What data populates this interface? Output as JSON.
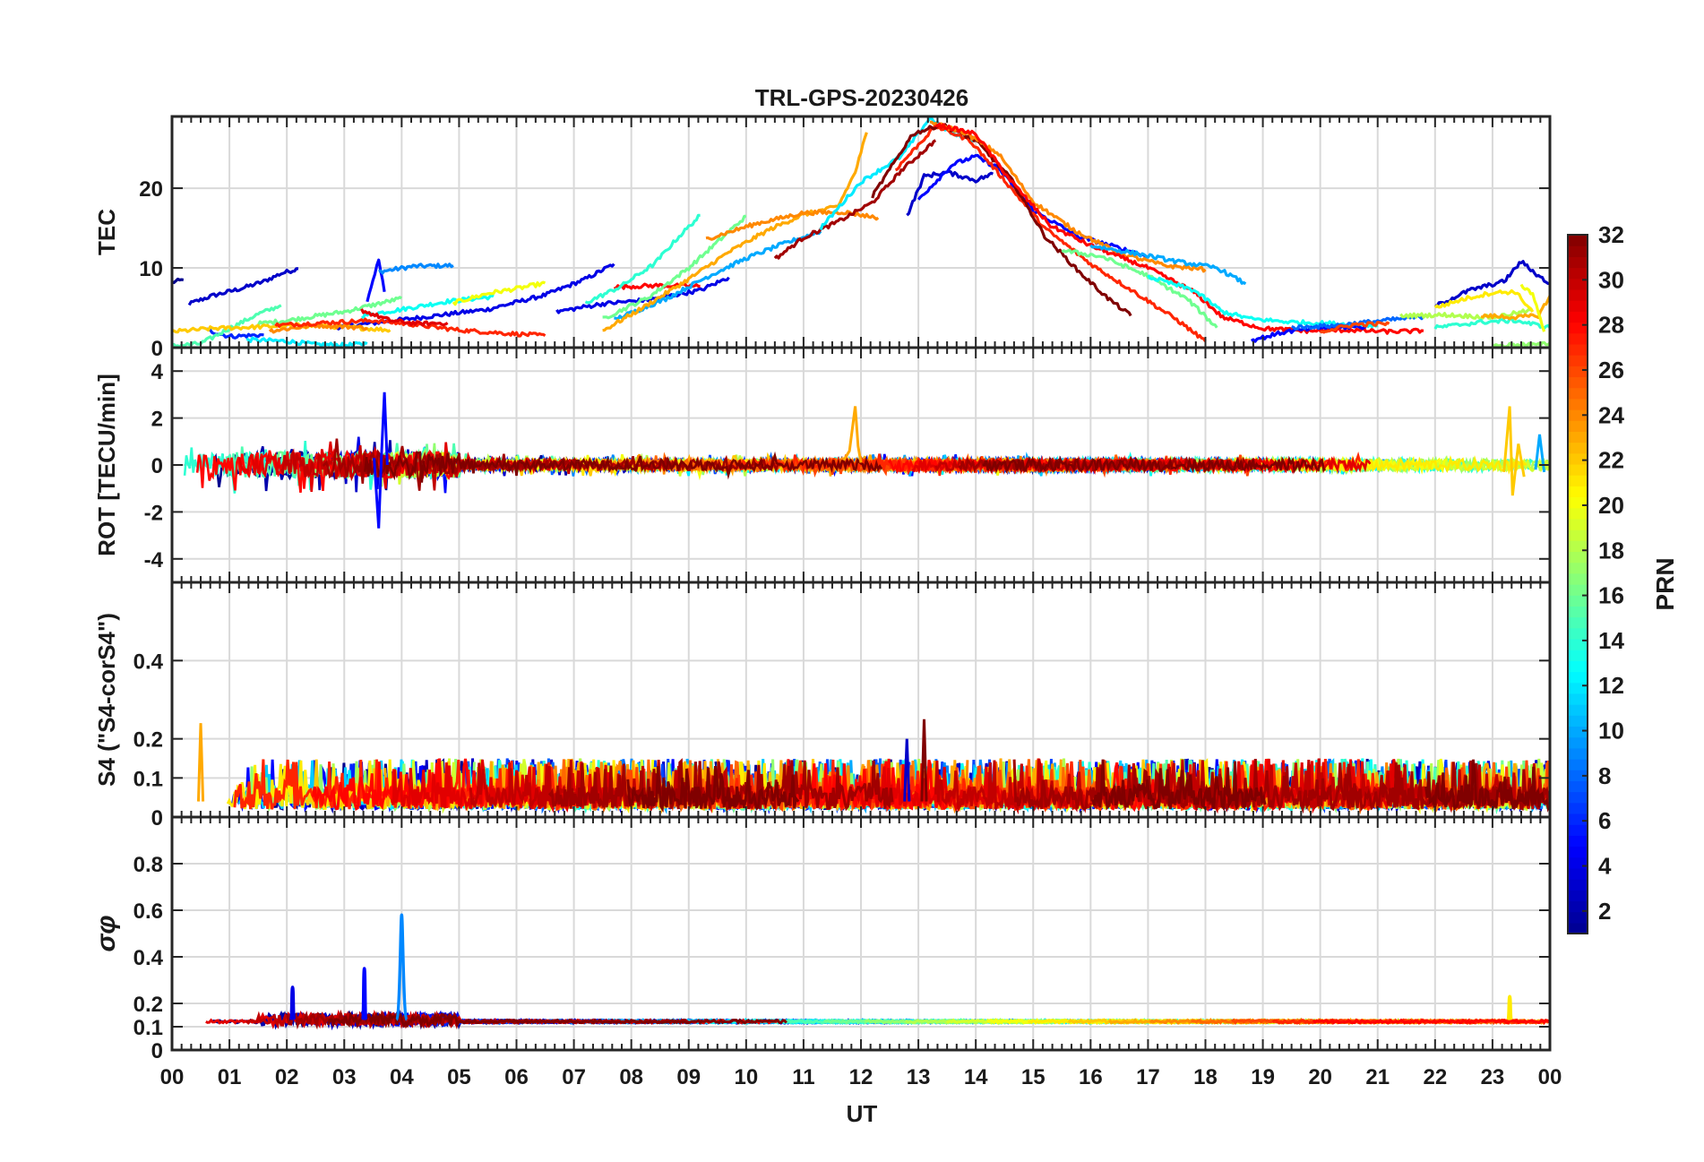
{
  "figure": {
    "title": "TRL-GPS-20230426",
    "xlabel": "UT"
  },
  "colorbar": {
    "label": "PRN",
    "range": [
      1,
      32
    ],
    "ticks": [
      2,
      4,
      6,
      8,
      10,
      12,
      14,
      16,
      18,
      20,
      22,
      24,
      26,
      28,
      30,
      32
    ],
    "colormap": "jet",
    "colors": [
      "#00008f",
      "#0000ff",
      "#0080ff",
      "#00ffff",
      "#80ff80",
      "#ffff00",
      "#ff8000",
      "#ff0000",
      "#800000"
    ]
  },
  "x_axis": {
    "range_hours": [
      0,
      24
    ],
    "tick_labels": [
      "00",
      "01",
      "02",
      "03",
      "04",
      "05",
      "06",
      "07",
      "08",
      "09",
      "10",
      "11",
      "12",
      "13",
      "14",
      "15",
      "16",
      "17",
      "18",
      "19",
      "20",
      "21",
      "22",
      "23",
      "00"
    ]
  },
  "chart_data": [
    {
      "type": "line",
      "panel": "tec",
      "ylabel": "TEC",
      "ylim": [
        0,
        29
      ],
      "yticks": [
        0,
        10,
        20
      ],
      "grid": true,
      "series": [
        {
          "prn": 1,
          "x": [
            0.0,
            0.2
          ],
          "y": [
            8.2,
            8.5
          ]
        },
        {
          "prn": 3,
          "x": [
            0.3,
            0.7,
            1.2,
            1.6,
            1.9,
            2.2
          ],
          "y": [
            5.5,
            6.5,
            7.4,
            8.3,
            9.3,
            9.9
          ]
        },
        {
          "prn": 5,
          "x": [
            3.4,
            3.6,
            3.7
          ],
          "y": [
            6.0,
            11.0,
            7.0
          ]
        },
        {
          "prn": 9,
          "x": [
            3.6,
            4.2,
            4.9
          ],
          "y": [
            9.5,
            10.2,
            10.3
          ]
        },
        {
          "prn": 4,
          "x": [
            2.8,
            4.0,
            5.5,
            6.5,
            7.2,
            7.7
          ],
          "y": [
            2.5,
            3.5,
            4.8,
            6.6,
            8.6,
            10.5
          ]
        },
        {
          "prn": 6,
          "x": [
            0.6,
            1.0,
            1.6
          ],
          "y": [
            2.2,
            1.4,
            1.6
          ]
        },
        {
          "prn": 12,
          "x": [
            1.3,
            2.0,
            2.5,
            3.0,
            3.4
          ],
          "y": [
            1.0,
            0.8,
            0.4,
            0.3,
            0.5
          ]
        },
        {
          "prn": 13,
          "x": [
            3.3,
            4.0,
            4.8,
            5.6
          ],
          "y": [
            4.0,
            4.8,
            5.8,
            6.4
          ]
        },
        {
          "prn": 15,
          "x": [
            0.0,
            0.5,
            1.0,
            1.5,
            1.9
          ],
          "y": [
            0.2,
            0.5,
            2.4,
            4.2,
            5.3
          ]
        },
        {
          "prn": 16,
          "x": [
            1.5,
            2.0,
            3.0,
            4.0
          ],
          "y": [
            3.0,
            3.4,
            4.5,
            6.2
          ]
        },
        {
          "prn": 20,
          "x": [
            4.9,
            5.5,
            6.0,
            6.5
          ],
          "y": [
            5.6,
            6.8,
            7.4,
            8.1
          ]
        },
        {
          "prn": 22,
          "x": [
            0.0,
            0.7,
            1.5,
            2.2,
            3.0,
            3.8
          ],
          "y": [
            2.0,
            2.4,
            2.6,
            2.8,
            2.6,
            2.2
          ]
        },
        {
          "prn": 24,
          "x": [
            1.7,
            2.5,
            3.4
          ],
          "y": [
            2.1,
            2.8,
            2.5
          ]
        },
        {
          "prn": 27,
          "x": [
            1.8,
            2.6,
            3.5,
            4.2,
            5.0,
            5.8,
            6.5
          ],
          "y": [
            2.8,
            3.1,
            3.4,
            2.9,
            2.2,
            1.8,
            1.5
          ]
        },
        {
          "prn": 29,
          "x": [
            3.3,
            3.8,
            4.3,
            4.8
          ],
          "y": [
            4.7,
            3.4,
            3.0,
            3.1
          ]
        },
        {
          "prn": 4,
          "x": [
            6.7,
            7.5,
            8.3,
            9.2,
            9.7
          ],
          "y": [
            4.5,
            5.5,
            6.0,
            7.2,
            8.8
          ]
        },
        {
          "prn": 28,
          "x": [
            7.7,
            8.5,
            9.2
          ],
          "y": [
            7.6,
            7.8,
            7.7
          ]
        },
        {
          "prn": 14,
          "x": [
            7.2,
            7.8,
            8.4,
            8.8,
            9.2
          ],
          "y": [
            5.6,
            7.6,
            10.5,
            13.7,
            16.6
          ]
        },
        {
          "prn": 16,
          "x": [
            7.5,
            8.3,
            9.0,
            9.6,
            10.0
          ],
          "y": [
            3.6,
            6.3,
            10.0,
            13.9,
            16.5
          ]
        },
        {
          "prn": 10,
          "x": [
            7.7,
            8.6,
            9.3,
            10.0,
            10.6,
            11.3
          ],
          "y": [
            3.5,
            6.1,
            8.8,
            11.2,
            12.9,
            14.6
          ]
        },
        {
          "prn": 23,
          "x": [
            7.5,
            8.2,
            9.0,
            9.7,
            10.4,
            11.0,
            11.6,
            11.9,
            12.1
          ],
          "y": [
            2.1,
            5.0,
            8.6,
            12.0,
            14.8,
            16.7,
            17.7,
            22.0,
            27.0
          ]
        },
        {
          "prn": 24,
          "x": [
            9.3,
            10.2,
            11.0,
            11.7,
            12.3
          ],
          "y": [
            13.6,
            15.6,
            16.9,
            17.0,
            16.3
          ]
        },
        {
          "prn": 31,
          "x": [
            10.5,
            11.0,
            11.6,
            12.2,
            12.7,
            13.3
          ],
          "y": [
            11.1,
            13.8,
            15.8,
            18.2,
            22.2,
            26.0
          ]
        },
        {
          "prn": 12,
          "x": [
            11.3,
            12.0,
            12.7,
            13.2,
            13.6,
            14.0
          ],
          "y": [
            15.0,
            20.8,
            24.0,
            28.8,
            26.8,
            26.0
          ]
        },
        {
          "prn": 3,
          "x": [
            12.8,
            13.1,
            13.5,
            14.0,
            14.3
          ],
          "y": [
            16.5,
            21.5,
            22.0,
            21.0,
            21.8
          ]
        },
        {
          "prn": 5,
          "x": [
            13.0,
            13.6,
            14.0,
            14.4,
            15.0,
            15.8,
            16.5,
            17.0
          ],
          "y": [
            18.6,
            23.0,
            24.0,
            22.5,
            17.2,
            13.9,
            12.5,
            11.4
          ]
        },
        {
          "prn": 27,
          "x": [
            12.6,
            13.3,
            13.9,
            14.5,
            15.2,
            16.0,
            16.8,
            17.5,
            18.0
          ],
          "y": [
            22.3,
            27.8,
            26.0,
            21.0,
            15.0,
            10.5,
            6.8,
            3.5,
            0.8
          ]
        },
        {
          "prn": 32,
          "x": [
            12.2,
            12.9,
            13.4,
            14.0,
            14.6,
            15.2,
            15.8,
            16.3,
            16.7
          ],
          "y": [
            19.0,
            26.8,
            28.0,
            26.0,
            21.3,
            14.0,
            9.5,
            6.2,
            4.0
          ]
        },
        {
          "prn": 24,
          "x": [
            13.2,
            13.8,
            14.4,
            15.0,
            15.7,
            16.5,
            17.3,
            18.0
          ],
          "y": [
            28.3,
            27.0,
            24.3,
            18.3,
            14.8,
            11.8,
            10.3,
            9.8
          ]
        },
        {
          "prn": 28,
          "x": [
            13.3,
            14.0,
            14.6,
            15.3,
            16.0,
            17.0,
            17.8,
            18.3,
            19.0,
            19.8,
            20.5,
            21.2,
            21.8
          ],
          "y": [
            28.0,
            26.8,
            21.0,
            15.3,
            12.8,
            10.0,
            7.0,
            3.8,
            2.4,
            2.1,
            2.2,
            2.0,
            2.1
          ]
        },
        {
          "prn": 16,
          "x": [
            15.5,
            16.2,
            17.0,
            17.7,
            18.2
          ],
          "y": [
            12.2,
            11.4,
            9.0,
            6.0,
            2.5
          ]
        },
        {
          "prn": 10,
          "x": [
            16.0,
            16.8,
            17.5,
            18.2,
            18.7
          ],
          "y": [
            12.8,
            11.8,
            10.8,
            10.0,
            8.0
          ]
        },
        {
          "prn": 13,
          "x": [
            17.0,
            17.8,
            18.3,
            18.8,
            19.5,
            20.3,
            21.0
          ],
          "y": [
            8.9,
            7.2,
            4.5,
            3.6,
            3.2,
            3.0,
            2.8
          ]
        },
        {
          "prn": 5,
          "x": [
            18.8,
            19.4,
            20.0,
            20.8
          ],
          "y": [
            0.9,
            2.0,
            2.5,
            2.6
          ]
        },
        {
          "prn": 8,
          "x": [
            19.5,
            20.3,
            21.1,
            21.8
          ],
          "y": [
            2.5,
            2.8,
            3.4,
            3.9
          ]
        },
        {
          "prn": 26,
          "x": [
            20.0,
            20.6,
            21.2
          ],
          "y": [
            2.0,
            2.9,
            3.0
          ]
        },
        {
          "prn": 18,
          "x": [
            21.4,
            22.2,
            23.0,
            23.7
          ],
          "y": [
            4.0,
            4.1,
            3.8,
            4.7
          ]
        },
        {
          "prn": 3,
          "x": [
            22.0,
            22.6,
            23.2,
            23.5,
            23.8,
            24.0
          ],
          "y": [
            5.2,
            7.2,
            8.3,
            10.8,
            9.0,
            8.0
          ]
        },
        {
          "prn": 21,
          "x": [
            22.0,
            22.5,
            23.0,
            23.4,
            23.7
          ],
          "y": [
            5.0,
            6.1,
            6.9,
            7.0,
            4.5
          ]
        },
        {
          "prn": 14,
          "x": [
            22.0,
            22.8,
            23.4,
            23.8,
            24.0
          ],
          "y": [
            2.5,
            3.2,
            3.4,
            2.8,
            2.5
          ]
        },
        {
          "prn": 23,
          "x": [
            22.8,
            23.4,
            23.8,
            24.0
          ],
          "y": [
            4.0,
            3.8,
            4.0,
            6.5
          ]
        },
        {
          "prn": 17,
          "x": [
            23.0,
            23.5,
            23.8,
            24.0
          ],
          "y": [
            0.2,
            0.4,
            0.3,
            0.6
          ]
        },
        {
          "prn": 20,
          "x": [
            23.5,
            23.7,
            23.9
          ],
          "y": [
            7.8,
            6.8,
            2.0
          ]
        }
      ]
    },
    {
      "type": "line",
      "panel": "rot",
      "ylabel": "ROT [TECU/min]",
      "ylim": [
        -5,
        5
      ],
      "yticks": [
        -4,
        -2,
        0,
        2,
        4
      ],
      "grid": true,
      "series": [
        {
          "prn": 5,
          "x": [
            3.52,
            3.6,
            3.65,
            3.7,
            3.75
          ],
          "y": [
            0.3,
            -2.7,
            0.5,
            3.1,
            0.0
          ]
        },
        {
          "prn": 23,
          "x": [
            11.7,
            11.8,
            11.9,
            11.95,
            12.0
          ],
          "y": [
            0.2,
            0.6,
            2.5,
            0.8,
            0.1
          ]
        },
        {
          "prn": 22,
          "x": [
            23.2,
            23.3,
            23.35,
            23.45,
            23.55
          ],
          "y": [
            -0.3,
            2.5,
            -1.3,
            0.9,
            -0.5
          ]
        },
        {
          "prn": 10,
          "x": [
            23.75,
            23.82,
            23.9
          ],
          "y": [
            -0.2,
            1.3,
            -0.3
          ]
        }
      ],
      "noise_band_note": "all PRNs fluctuate mostly within ±1 TECU/min around 0"
    },
    {
      "type": "line",
      "panel": "s4",
      "ylabel": "S4 (\"S4-corS4\")",
      "ylim": [
        0,
        0.6
      ],
      "yticks": [
        0,
        0.1,
        0.2,
        0.4
      ],
      "ytick_labels": [
        "0",
        "0.1",
        "0.2",
        "0.4"
      ],
      "grid": true,
      "peaks": [
        {
          "prn": 23,
          "x": 0.5,
          "y": 0.24
        },
        {
          "prn": 32,
          "x": 13.1,
          "y": 0.25
        },
        {
          "prn": 3,
          "x": 12.8,
          "y": 0.2
        }
      ],
      "baseline_range": [
        0.02,
        0.15
      ]
    },
    {
      "type": "line",
      "panel": "sigma_phi",
      "ylabel": "σφ",
      "ylim": [
        0,
        1
      ],
      "yticks": [
        0,
        0.1,
        0.2,
        0.4,
        0.6,
        0.8
      ],
      "ytick_labels": [
        "0",
        "0.1",
        "0.2",
        "0.4",
        "0.6",
        "0.8"
      ],
      "grid": true,
      "peaks": [
        {
          "prn": 9,
          "x": 4.0,
          "y": 0.58
        },
        {
          "prn": 5,
          "x": 3.35,
          "y": 0.35
        },
        {
          "prn": 4,
          "x": 2.1,
          "y": 0.27
        },
        {
          "prn": 21,
          "x": 23.3,
          "y": 0.23
        }
      ],
      "baseline": 0.12
    }
  ]
}
